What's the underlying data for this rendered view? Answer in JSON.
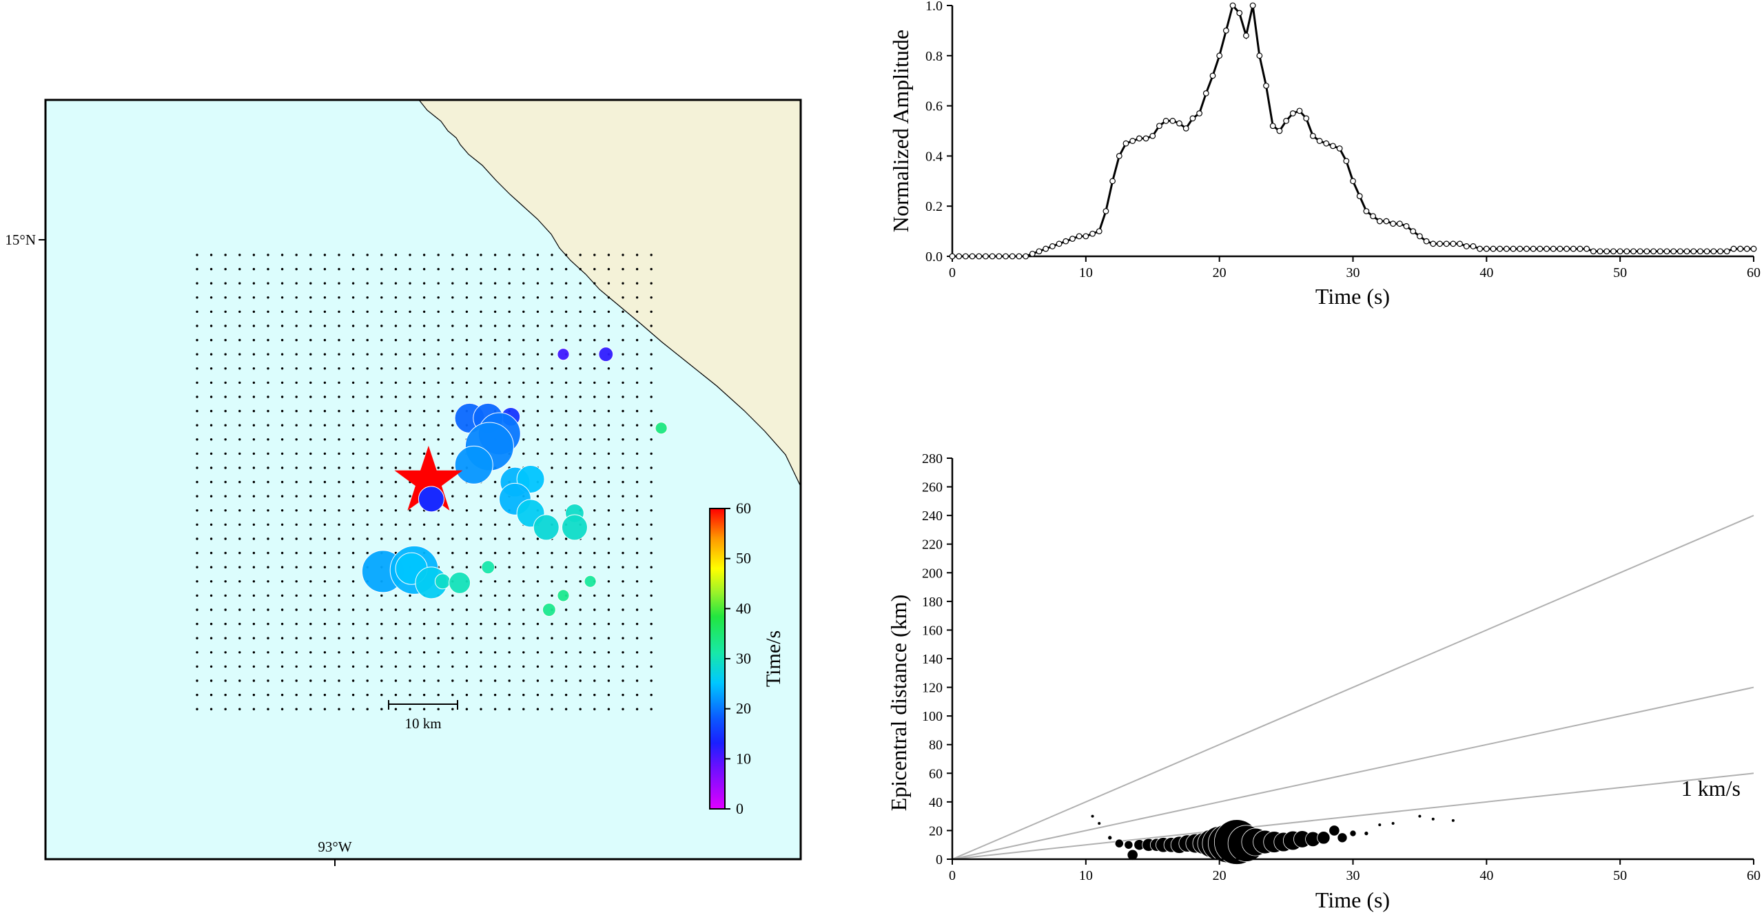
{
  "chart_data": [
    {
      "type": "scatter",
      "panel": "map",
      "lon_tick_label": "93°W",
      "lat_tick_label": "15°N",
      "scale_bar_label": "10 km",
      "colorbar": {
        "label": "Time/s",
        "ticks": [
          0,
          10,
          20,
          30,
          40,
          50,
          60
        ],
        "range": [
          0,
          60
        ],
        "colors": [
          "#e000ff",
          "#3a18ff",
          "#0b58ff",
          "#00c8ff",
          "#1ee68c",
          "#7cf22a",
          "#ffff00",
          "#ff8800",
          "#ff0000"
        ]
      },
      "colors": {
        "ocean": "#dcfdfd",
        "land": "#f4f2d8",
        "coast": "#000000",
        "grid_dot": "#000000",
        "epicenter": "#ff0000"
      },
      "grid": {
        "columns": 33,
        "rows": 33
      },
      "epicenter": {
        "col": 16.5,
        "row": 16.5
      },
      "sources": [
        {
          "col": 25.8,
          "row": 7.0,
          "time": 11,
          "amp": 0.12
        },
        {
          "col": 28.8,
          "row": 7.0,
          "time": 12,
          "amp": 0.18
        },
        {
          "col": 32.7,
          "row": 12.2,
          "time": 34,
          "amp": 0.12
        },
        {
          "col": 22.1,
          "row": 11.4,
          "time": 15,
          "amp": 0.28
        },
        {
          "col": 19.2,
          "row": 11.5,
          "time": 19,
          "amp": 0.55
        },
        {
          "col": 20.5,
          "row": 11.5,
          "time": 19,
          "amp": 0.55
        },
        {
          "col": 21.3,
          "row": 12.6,
          "time": 20,
          "amp": 0.85
        },
        {
          "col": 20.6,
          "row": 13.5,
          "time": 21,
          "amp": 1.0
        },
        {
          "col": 19.5,
          "row": 14.8,
          "time": 22,
          "amp": 0.75
        },
        {
          "col": 22.4,
          "row": 16.0,
          "time": 24,
          "amp": 0.55
        },
        {
          "col": 23.5,
          "row": 15.8,
          "time": 25,
          "amp": 0.5
        },
        {
          "col": 22.4,
          "row": 17.2,
          "time": 24,
          "amp": 0.6
        },
        {
          "col": 23.5,
          "row": 18.2,
          "time": 26,
          "amp": 0.5
        },
        {
          "col": 24.6,
          "row": 19.2,
          "time": 28,
          "amp": 0.45
        },
        {
          "col": 26.6,
          "row": 18.2,
          "time": 29,
          "amp": 0.28
        },
        {
          "col": 26.6,
          "row": 19.2,
          "time": 29,
          "amp": 0.45
        },
        {
          "col": 16.5,
          "row": 17.2,
          "time": 14,
          "amp": 0.45
        },
        {
          "col": 13.1,
          "row": 22.3,
          "time": 23,
          "amp": 0.85
        },
        {
          "col": 15.3,
          "row": 22.2,
          "time": 24,
          "amp": 1.0
        },
        {
          "col": 15.1,
          "row": 22.1,
          "time": 25,
          "amp": 0.6
        },
        {
          "col": 16.5,
          "row": 23.1,
          "time": 26,
          "amp": 0.6
        },
        {
          "col": 17.3,
          "row": 23.0,
          "time": 29,
          "amp": 0.2
        },
        {
          "col": 18.5,
          "row": 23.1,
          "time": 30,
          "amp": 0.35
        },
        {
          "col": 20.5,
          "row": 22.0,
          "time": 31,
          "amp": 0.15
        },
        {
          "col": 27.7,
          "row": 23.0,
          "time": 32,
          "amp": 0.12
        },
        {
          "col": 25.8,
          "row": 24.0,
          "time": 33,
          "amp": 0.12
        },
        {
          "col": 24.8,
          "row": 25.0,
          "time": 33,
          "amp": 0.15
        }
      ]
    },
    {
      "type": "line",
      "panel": "amplitude",
      "xlabel": "Time (s)",
      "ylabel": "Normalized Amplitude",
      "xlim": [
        0,
        60
      ],
      "ylim": [
        0,
        1.0
      ],
      "xticks": [
        0,
        10,
        20,
        30,
        40,
        50,
        60
      ],
      "yticks": [
        "0.0",
        "0.2",
        "0.4",
        "0.6",
        "0.8",
        "1.0"
      ],
      "x": [
        0,
        0.5,
        1,
        1.5,
        2,
        2.5,
        3,
        3.5,
        4,
        4.5,
        5,
        5.5,
        6,
        6.5,
        7,
        7.5,
        8,
        8.5,
        9,
        9.5,
        10,
        10.5,
        11,
        11.5,
        12,
        12.5,
        13,
        13.5,
        14,
        14.5,
        15,
        15.5,
        16,
        16.5,
        17,
        17.5,
        18,
        18.5,
        19,
        19.5,
        20,
        20.5,
        21,
        21.5,
        22,
        22.5,
        23,
        23.5,
        24,
        24.5,
        25,
        25.5,
        26,
        26.5,
        27,
        27.5,
        28,
        28.5,
        29,
        29.5,
        30,
        30.5,
        31,
        31.5,
        32,
        32.5,
        33,
        33.5,
        34,
        34.5,
        35,
        35.5,
        36,
        36.5,
        37,
        37.5,
        38,
        38.5,
        39,
        39.5,
        40,
        40.5,
        41,
        41.5,
        42,
        42.5,
        43,
        43.5,
        44,
        44.5,
        45,
        45.5,
        46,
        46.5,
        47,
        47.5,
        48,
        48.5,
        49,
        49.5,
        50,
        50.5,
        51,
        51.5,
        52,
        52.5,
        53,
        53.5,
        54,
        54.5,
        55,
        55.5,
        56,
        56.5,
        57,
        57.5,
        58,
        58.5,
        59,
        59.5,
        60
      ],
      "y": [
        0.0,
        0.0,
        0.0,
        0.0,
        0.0,
        0.0,
        0.0,
        0.0,
        0.0,
        0.0,
        0.0,
        0.0,
        0.01,
        0.02,
        0.03,
        0.04,
        0.05,
        0.06,
        0.07,
        0.08,
        0.08,
        0.09,
        0.1,
        0.18,
        0.3,
        0.4,
        0.45,
        0.46,
        0.47,
        0.47,
        0.48,
        0.52,
        0.54,
        0.54,
        0.53,
        0.51,
        0.55,
        0.57,
        0.65,
        0.72,
        0.8,
        0.9,
        1.0,
        0.97,
        0.88,
        1.0,
        0.8,
        0.68,
        0.52,
        0.5,
        0.54,
        0.57,
        0.58,
        0.55,
        0.48,
        0.46,
        0.45,
        0.44,
        0.43,
        0.38,
        0.3,
        0.24,
        0.18,
        0.16,
        0.14,
        0.14,
        0.13,
        0.13,
        0.12,
        0.1,
        0.08,
        0.06,
        0.05,
        0.05,
        0.05,
        0.05,
        0.05,
        0.04,
        0.04,
        0.03,
        0.03,
        0.03,
        0.03,
        0.03,
        0.03,
        0.03,
        0.03,
        0.03,
        0.03,
        0.03,
        0.03,
        0.03,
        0.03,
        0.03,
        0.03,
        0.03,
        0.02,
        0.02,
        0.02,
        0.02,
        0.02,
        0.02,
        0.02,
        0.02,
        0.02,
        0.02,
        0.02,
        0.02,
        0.02,
        0.02,
        0.02,
        0.02,
        0.02,
        0.02,
        0.02,
        0.02,
        0.02,
        0.03,
        0.03,
        0.03,
        0.03
      ]
    },
    {
      "type": "scatter",
      "panel": "distance",
      "xlabel": "Time (s)",
      "ylabel": "Epicentral distance (km)",
      "xlim": [
        0,
        60
      ],
      "ylim": [
        0,
        280
      ],
      "xticks": [
        0,
        10,
        20,
        30,
        40,
        50,
        60
      ],
      "yticks": [
        0,
        20,
        40,
        60,
        80,
        100,
        120,
        140,
        160,
        180,
        200,
        220,
        240,
        260,
        280
      ],
      "velocity_lines": [
        {
          "slope": 1,
          "label": "1 km/s"
        },
        {
          "slope": 2,
          "label": ""
        },
        {
          "slope": 4,
          "label": ""
        }
      ],
      "points": [
        {
          "t": 11.8,
          "d": 15,
          "amp": 0.05
        },
        {
          "t": 12.5,
          "d": 11,
          "amp": 0.15
        },
        {
          "t": 13.2,
          "d": 10,
          "amp": 0.15
        },
        {
          "t": 13.5,
          "d": 3,
          "amp": 0.2
        },
        {
          "t": 14.0,
          "d": 10,
          "amp": 0.2
        },
        {
          "t": 14.7,
          "d": 10,
          "amp": 0.25
        },
        {
          "t": 15.3,
          "d": 10,
          "amp": 0.25
        },
        {
          "t": 15.8,
          "d": 10,
          "amp": 0.3
        },
        {
          "t": 16.4,
          "d": 10,
          "amp": 0.3
        },
        {
          "t": 17.0,
          "d": 10,
          "amp": 0.35
        },
        {
          "t": 17.6,
          "d": 11,
          "amp": 0.35
        },
        {
          "t": 18.2,
          "d": 11,
          "amp": 0.4
        },
        {
          "t": 18.8,
          "d": 11,
          "amp": 0.45
        },
        {
          "t": 19.4,
          "d": 11,
          "amp": 0.6
        },
        {
          "t": 20.0,
          "d": 11,
          "amp": 0.75
        },
        {
          "t": 20.6,
          "d": 11,
          "amp": 0.85
        },
        {
          "t": 21.3,
          "d": 12,
          "amp": 1.0
        },
        {
          "t": 22.0,
          "d": 11,
          "amp": 0.8
        },
        {
          "t": 22.7,
          "d": 12,
          "amp": 0.6
        },
        {
          "t": 23.4,
          "d": 12,
          "amp": 0.5
        },
        {
          "t": 24.1,
          "d": 12,
          "amp": 0.45
        },
        {
          "t": 24.8,
          "d": 12,
          "amp": 0.4
        },
        {
          "t": 25.5,
          "d": 13,
          "amp": 0.4
        },
        {
          "t": 26.2,
          "d": 14,
          "amp": 0.35
        },
        {
          "t": 27.0,
          "d": 14,
          "amp": 0.3
        },
        {
          "t": 27.8,
          "d": 15,
          "amp": 0.25
        },
        {
          "t": 28.6,
          "d": 20,
          "amp": 0.2
        },
        {
          "t": 29.2,
          "d": 15,
          "amp": 0.18
        },
        {
          "t": 30.0,
          "d": 18,
          "amp": 0.1
        },
        {
          "t": 31.0,
          "d": 18,
          "amp": 0.05
        },
        {
          "t": 32.0,
          "d": 24,
          "amp": 0.03
        },
        {
          "t": 33.0,
          "d": 25,
          "amp": 0.03
        },
        {
          "t": 35.0,
          "d": 30,
          "amp": 0.03
        },
        {
          "t": 36.0,
          "d": 28,
          "amp": 0.03
        },
        {
          "t": 37.5,
          "d": 27,
          "amp": 0.03
        },
        {
          "t": 10.5,
          "d": 30,
          "amp": 0.03
        },
        {
          "t": 11.0,
          "d": 25,
          "amp": 0.03
        }
      ]
    }
  ]
}
